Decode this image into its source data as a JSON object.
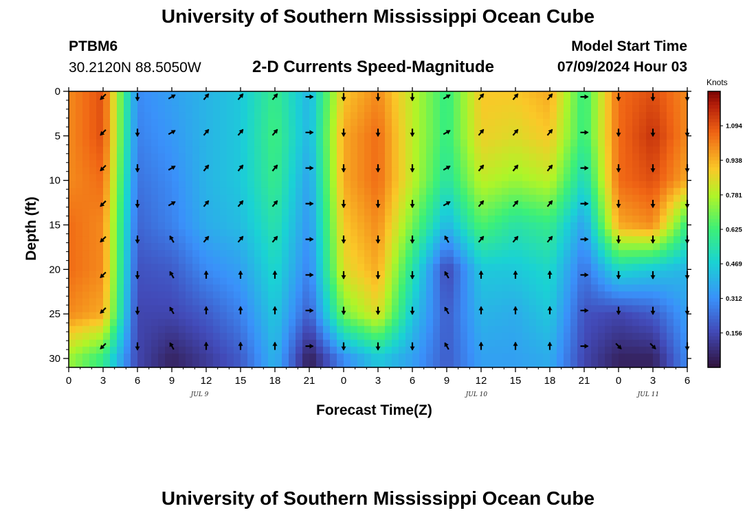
{
  "page": {
    "title_top": "University of Southern Mississippi Ocean Cube",
    "title_bottom": "University of Southern Mississippi Ocean Cube"
  },
  "header": {
    "station": "PTBM6",
    "coords": "30.2120N  88.5050W",
    "plot_title": "2-D Currents Speed-Magnitude",
    "model_label": "Model Start Time",
    "model_time": "07/09/2024 Hour 03"
  },
  "chart_data": {
    "type": "heatmap",
    "title": "2-D Currents Speed-Magnitude",
    "xlabel": "Forecast Time(Z)",
    "ylabel": "Depth (ft)",
    "x_ticks": [
      "0",
      "3",
      "6",
      "9",
      "12",
      "15",
      "18",
      "21",
      "0",
      "3",
      "6",
      "9",
      "12",
      "15",
      "18",
      "21",
      "0",
      "3",
      "6"
    ],
    "x_range_hours": [
      0,
      54
    ],
    "date_labels": [
      {
        "text": "JUL 9",
        "hour": 11.5
      },
      {
        "text": "JUL 10",
        "hour": 35.5
      },
      {
        "text": "JUL 11",
        "hour": 50.5
      }
    ],
    "y_ticks": [
      0,
      5,
      10,
      15,
      20,
      25,
      30
    ],
    "y_range_ft": [
      0,
      31
    ],
    "colorbar": {
      "label": "Knots",
      "ticks": [
        "1.094",
        "0.938",
        "0.781",
        "0.625",
        "0.469",
        "0.312",
        "0.156"
      ],
      "range": [
        0,
        1.25
      ]
    },
    "speed_grid": {
      "hours": [
        0,
        3,
        6,
        9,
        12,
        15,
        18,
        21,
        24,
        27,
        30,
        33,
        36,
        39,
        42,
        45,
        48,
        51,
        54
      ],
      "depths_ft": [
        0,
        5,
        10,
        15,
        20,
        25,
        30
      ],
      "values": [
        [
          1.0,
          1.1,
          0.3,
          0.35,
          0.4,
          0.45,
          0.6,
          0.4,
          0.9,
          1.0,
          0.8,
          0.6,
          0.9,
          0.9,
          0.95,
          0.6,
          1.05,
          1.1,
          1.0
        ],
        [
          1.0,
          1.1,
          0.28,
          0.33,
          0.4,
          0.45,
          0.62,
          0.4,
          0.95,
          1.05,
          0.8,
          0.6,
          0.88,
          0.85,
          0.9,
          0.6,
          1.05,
          1.15,
          1.0
        ],
        [
          1.0,
          1.05,
          0.25,
          0.3,
          0.4,
          0.45,
          0.6,
          0.35,
          0.95,
          1.05,
          0.8,
          0.55,
          0.8,
          0.75,
          0.8,
          0.5,
          1.05,
          1.1,
          0.95
        ],
        [
          1.05,
          1.0,
          0.22,
          0.28,
          0.38,
          0.42,
          0.55,
          0.32,
          0.9,
          1.0,
          0.7,
          0.4,
          0.65,
          0.55,
          0.6,
          0.35,
          0.95,
          1.0,
          0.6
        ],
        [
          1.05,
          1.0,
          0.18,
          0.2,
          0.3,
          0.35,
          0.5,
          0.28,
          0.85,
          0.95,
          0.55,
          0.15,
          0.45,
          0.45,
          0.5,
          0.25,
          0.5,
          0.45,
          0.4
        ],
        [
          1.0,
          0.95,
          0.15,
          0.15,
          0.2,
          0.28,
          0.45,
          0.2,
          0.7,
          0.85,
          0.45,
          0.2,
          0.4,
          0.38,
          0.45,
          0.18,
          0.15,
          0.2,
          0.35
        ],
        [
          0.75,
          0.6,
          0.15,
          0.05,
          0.12,
          0.2,
          0.4,
          0.03,
          0.3,
          0.45,
          0.35,
          0.2,
          0.35,
          0.35,
          0.38,
          0.15,
          0.05,
          0.05,
          0.3
        ]
      ]
    },
    "vectors": {
      "hours": [
        3,
        6,
        9,
        12,
        15,
        18,
        21,
        24,
        27,
        30,
        33,
        36,
        39,
        42,
        45,
        48,
        51,
        54
      ],
      "depths_ft": [
        0,
        4,
        8,
        12,
        16,
        20,
        24,
        28
      ],
      "note": "direction in degrees clockwise from north (direction toward which current flows)"
    }
  }
}
